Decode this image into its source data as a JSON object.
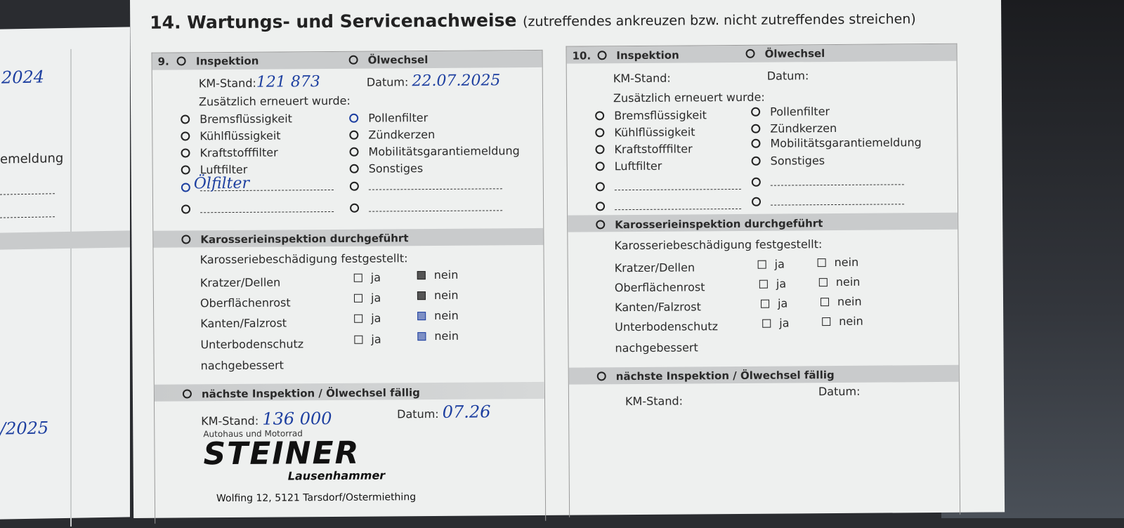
{
  "title": "14. Wartungs- und Servicenachweise",
  "subtitle": "(zutreffendes ankreuzen bzw. nicht zutreffendes streichen)",
  "left_page": {
    "year_top": "2024",
    "fragment": "emeldung",
    "year_bottom": "/2025"
  },
  "entries": [
    {
      "number": "9.",
      "inspektion": "Inspektion",
      "oelwechsel": "Ölwechsel",
      "km_label": "KM-Stand:",
      "km_value": "121 873",
      "datum_label": "Datum:",
      "datum_value": "22.07.2025",
      "additional_label": "Zusätzlich erneuert wurde:",
      "items_left": [
        "Bremsflüssigkeit",
        "Kühlflüssigkeit",
        "Kraftstofffilter",
        "Luftfilter"
      ],
      "items_right": [
        "Pollenfilter",
        "Zündkerzen",
        "Mobilitätsgarantiemeldung",
        "Sonstiges"
      ],
      "custom_item": "Ölfilter",
      "body_inspection": "Karosserieinspektion durchgeführt",
      "damage_label": "Karosseriebeschädigung festgestellt:",
      "damage_rows": [
        "Kratzer/Dellen",
        "Oberflächenrost",
        "Kanten/Falzrost",
        "Unterbodenschutz"
      ],
      "repaired": "nachgebessert",
      "yes": "ja",
      "no": "nein",
      "next_label": "nächste Inspektion / Ölwechsel fällig",
      "next_km_label": "KM-Stand:",
      "next_km_value": "136 000",
      "next_datum_label": "Datum:",
      "next_datum_value": "07.26",
      "stamp": {
        "line1": "Autohaus und Motorrad",
        "name": "STEINER",
        "sub": "Lausenhammer",
        "address": "Wolfing 12, 5121 Tarsdorf/Ostermiething"
      }
    },
    {
      "number": "10.",
      "inspektion": "Inspektion",
      "oelwechsel": "Ölwechsel",
      "km_label": "KM-Stand:",
      "datum_label": "Datum:",
      "additional_label": "Zusätzlich erneuert wurde:",
      "items_left": [
        "Bremsflüssigkeit",
        "Kühlflüssigkeit",
        "Kraftstofffilter",
        "Luftfilter"
      ],
      "items_right": [
        "Pollenfilter",
        "Zündkerzen",
        "Mobilitätsgarantiemeldung",
        "Sonstiges"
      ],
      "body_inspection": "Karosserieinspektion durchgeführt",
      "damage_label": "Karosseriebeschädigung festgestellt:",
      "damage_rows": [
        "Kratzer/Dellen",
        "Oberflächenrost",
        "Kanten/Falzrost",
        "Unterbodenschutz"
      ],
      "repaired": "nachgebessert",
      "yes": "ja",
      "no": "nein",
      "next_label": "nächste Inspektion / Ölwechsel fällig",
      "next_km_label": "KM-Stand:",
      "next_datum_label": "Datum:"
    }
  ]
}
